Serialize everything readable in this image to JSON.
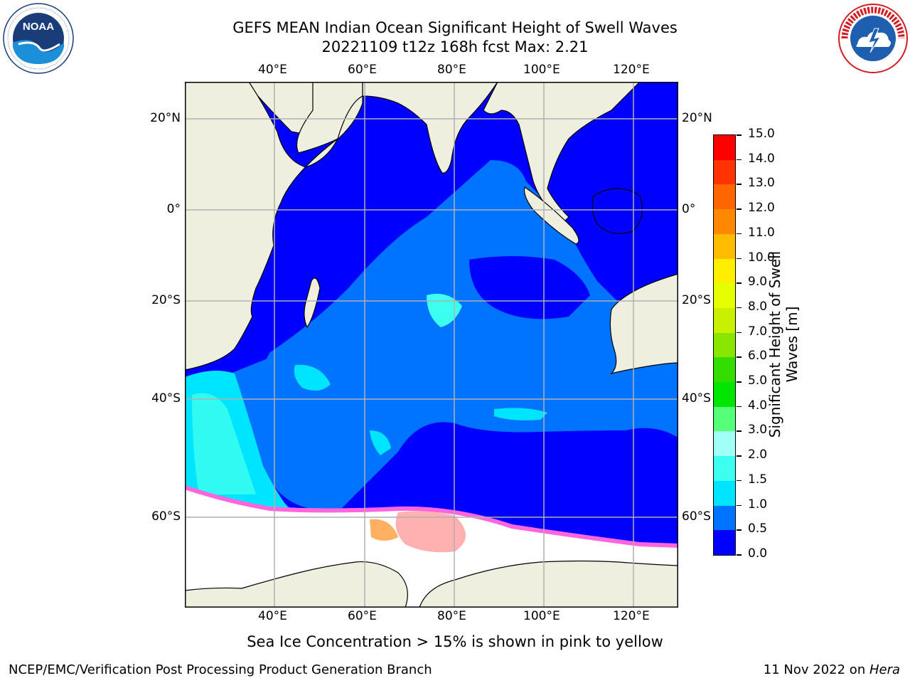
{
  "title": {
    "line1": "GEFS MEAN Indian Ocean Significant Height of Swell Waves",
    "line2": "20221109 t12z 168h fcst   Max: 2.21"
  },
  "logos": {
    "left": {
      "name": "NOAA",
      "text": "NOAA",
      "ring_text": "NATIONAL OCEANIC AND ATMOSPHERIC ADMINISTRATION · U.S. DEPARTMENT OF COMMERCE"
    },
    "right": {
      "name": "National Weather Service",
      "ring_text": "NATIONAL WEATHER SERVICE"
    }
  },
  "map": {
    "lon_ticks_top": [
      "40°E",
      "60°E",
      "80°E",
      "100°E",
      "120°E"
    ],
    "lon_ticks_bottom": [
      "40°E",
      "60°E",
      "80°E",
      "100°E",
      "120°E"
    ],
    "lat_ticks_left": [
      "20°N",
      "0°",
      "20°S",
      "40°S",
      "60°S"
    ],
    "lat_ticks_right": [
      "20°N",
      "0°",
      "20°S",
      "40°S",
      "60°S"
    ],
    "colors": {
      "land": "#efefdf",
      "ocean_low": "#0000ff",
      "ocean_mid": "#0073ff",
      "ocean_high": "#00e5ff",
      "ice": "#ffffff",
      "ice_edge": "#ff66dd",
      "ice_orange": "#ffb060"
    }
  },
  "colorbar": {
    "label": "Significant Height of Swell Waves [m]",
    "ticks": [
      "15.0",
      "14.0",
      "13.0",
      "12.0",
      "11.0",
      "10.0",
      "9.0",
      "8.0",
      "7.0",
      "6.0",
      "5.0",
      "4.0",
      "3.0",
      "2.0",
      "1.5",
      "1.0",
      "0.5",
      "0.0"
    ],
    "colors": [
      "#0000ff",
      "#0073ff",
      "#00e5ff",
      "#3dfff0",
      "#a0fff7",
      "#55ff77",
      "#00e600",
      "#33dd00",
      "#88e600",
      "#c8f000",
      "#e6ff00",
      "#ffee00",
      "#ffbb00",
      "#ff8800",
      "#ff6600",
      "#ff3300",
      "#ff0000"
    ]
  },
  "caption": "Sea Ice Concentration > 15% is shown in pink to yellow",
  "footer": {
    "left": "NCEP/EMC/Verification Post Processing Product Generation Branch",
    "date": "11 Nov 2022 on ",
    "host": "Hera"
  }
}
